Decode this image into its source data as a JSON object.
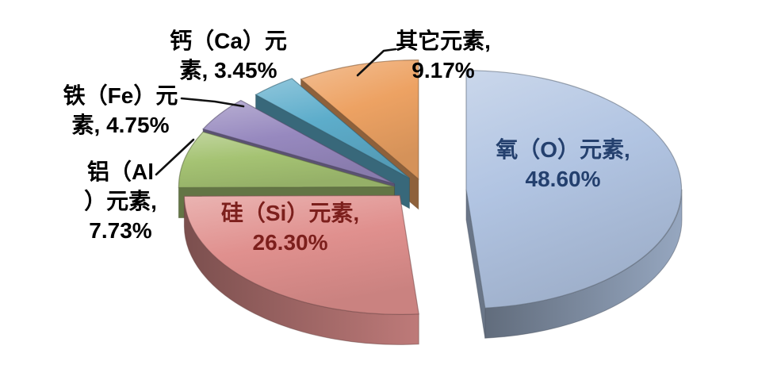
{
  "page": {
    "background": "#ffffff",
    "description": "3D exploded pie chart of element mass percentages"
  },
  "chart_data": {
    "type": "pie",
    "style": "3d-exploded",
    "title": "",
    "legend_position": "none",
    "unit": "%",
    "total": 100.0,
    "start_angle_deg": 0,
    "direction": "clockwise",
    "slices": [
      {
        "id": "oxygen",
        "label": "氧（O）元素",
        "value": 48.6,
        "display": "48.60%",
        "color": "#b1c4e2",
        "label_color": "#24406e",
        "label_placement": "inside"
      },
      {
        "id": "silicon",
        "label": "硅（Si）元素",
        "value": 26.3,
        "display": "26.30%",
        "color": "#e0908e",
        "label_color": "#7c1f1c",
        "label_placement": "inside"
      },
      {
        "id": "aluminum",
        "label": "铝（Al）元素",
        "value": 7.73,
        "display": "7.73%",
        "color": "#a5c373",
        "label_color": "#000000",
        "label_placement": "outside"
      },
      {
        "id": "iron",
        "label": "铁（Fe）元素",
        "value": 4.75,
        "display": "4.75%",
        "color": "#9789bf",
        "label_color": "#000000",
        "label_placement": "outside"
      },
      {
        "id": "calcium",
        "label": "钙（Ca）元素",
        "value": 3.45,
        "display": "3.45%",
        "color": "#5dadcb",
        "label_color": "#000000",
        "label_placement": "outside"
      },
      {
        "id": "other",
        "label": "其它元素",
        "value": 9.17,
        "display": "9.17%",
        "color": "#eda263",
        "label_color": "#000000",
        "label_placement": "outside"
      }
    ]
  },
  "callouts": {
    "oxygen": {
      "lines": [
        "氧（O）元素,",
        "48.60%"
      ]
    },
    "silicon": {
      "lines": [
        "硅（Si）元素,",
        "26.30%"
      ]
    },
    "aluminum": {
      "lines": [
        "铝（Al",
        "）元素,",
        "7.73%"
      ]
    },
    "iron": {
      "lines": [
        "铁（Fe）元",
        "素, 4.75%"
      ]
    },
    "calcium": {
      "lines": [
        "钙（Ca）元",
        "素, 3.45%"
      ]
    },
    "other": {
      "lines": [
        "其它元素,",
        "9.17%"
      ]
    }
  }
}
